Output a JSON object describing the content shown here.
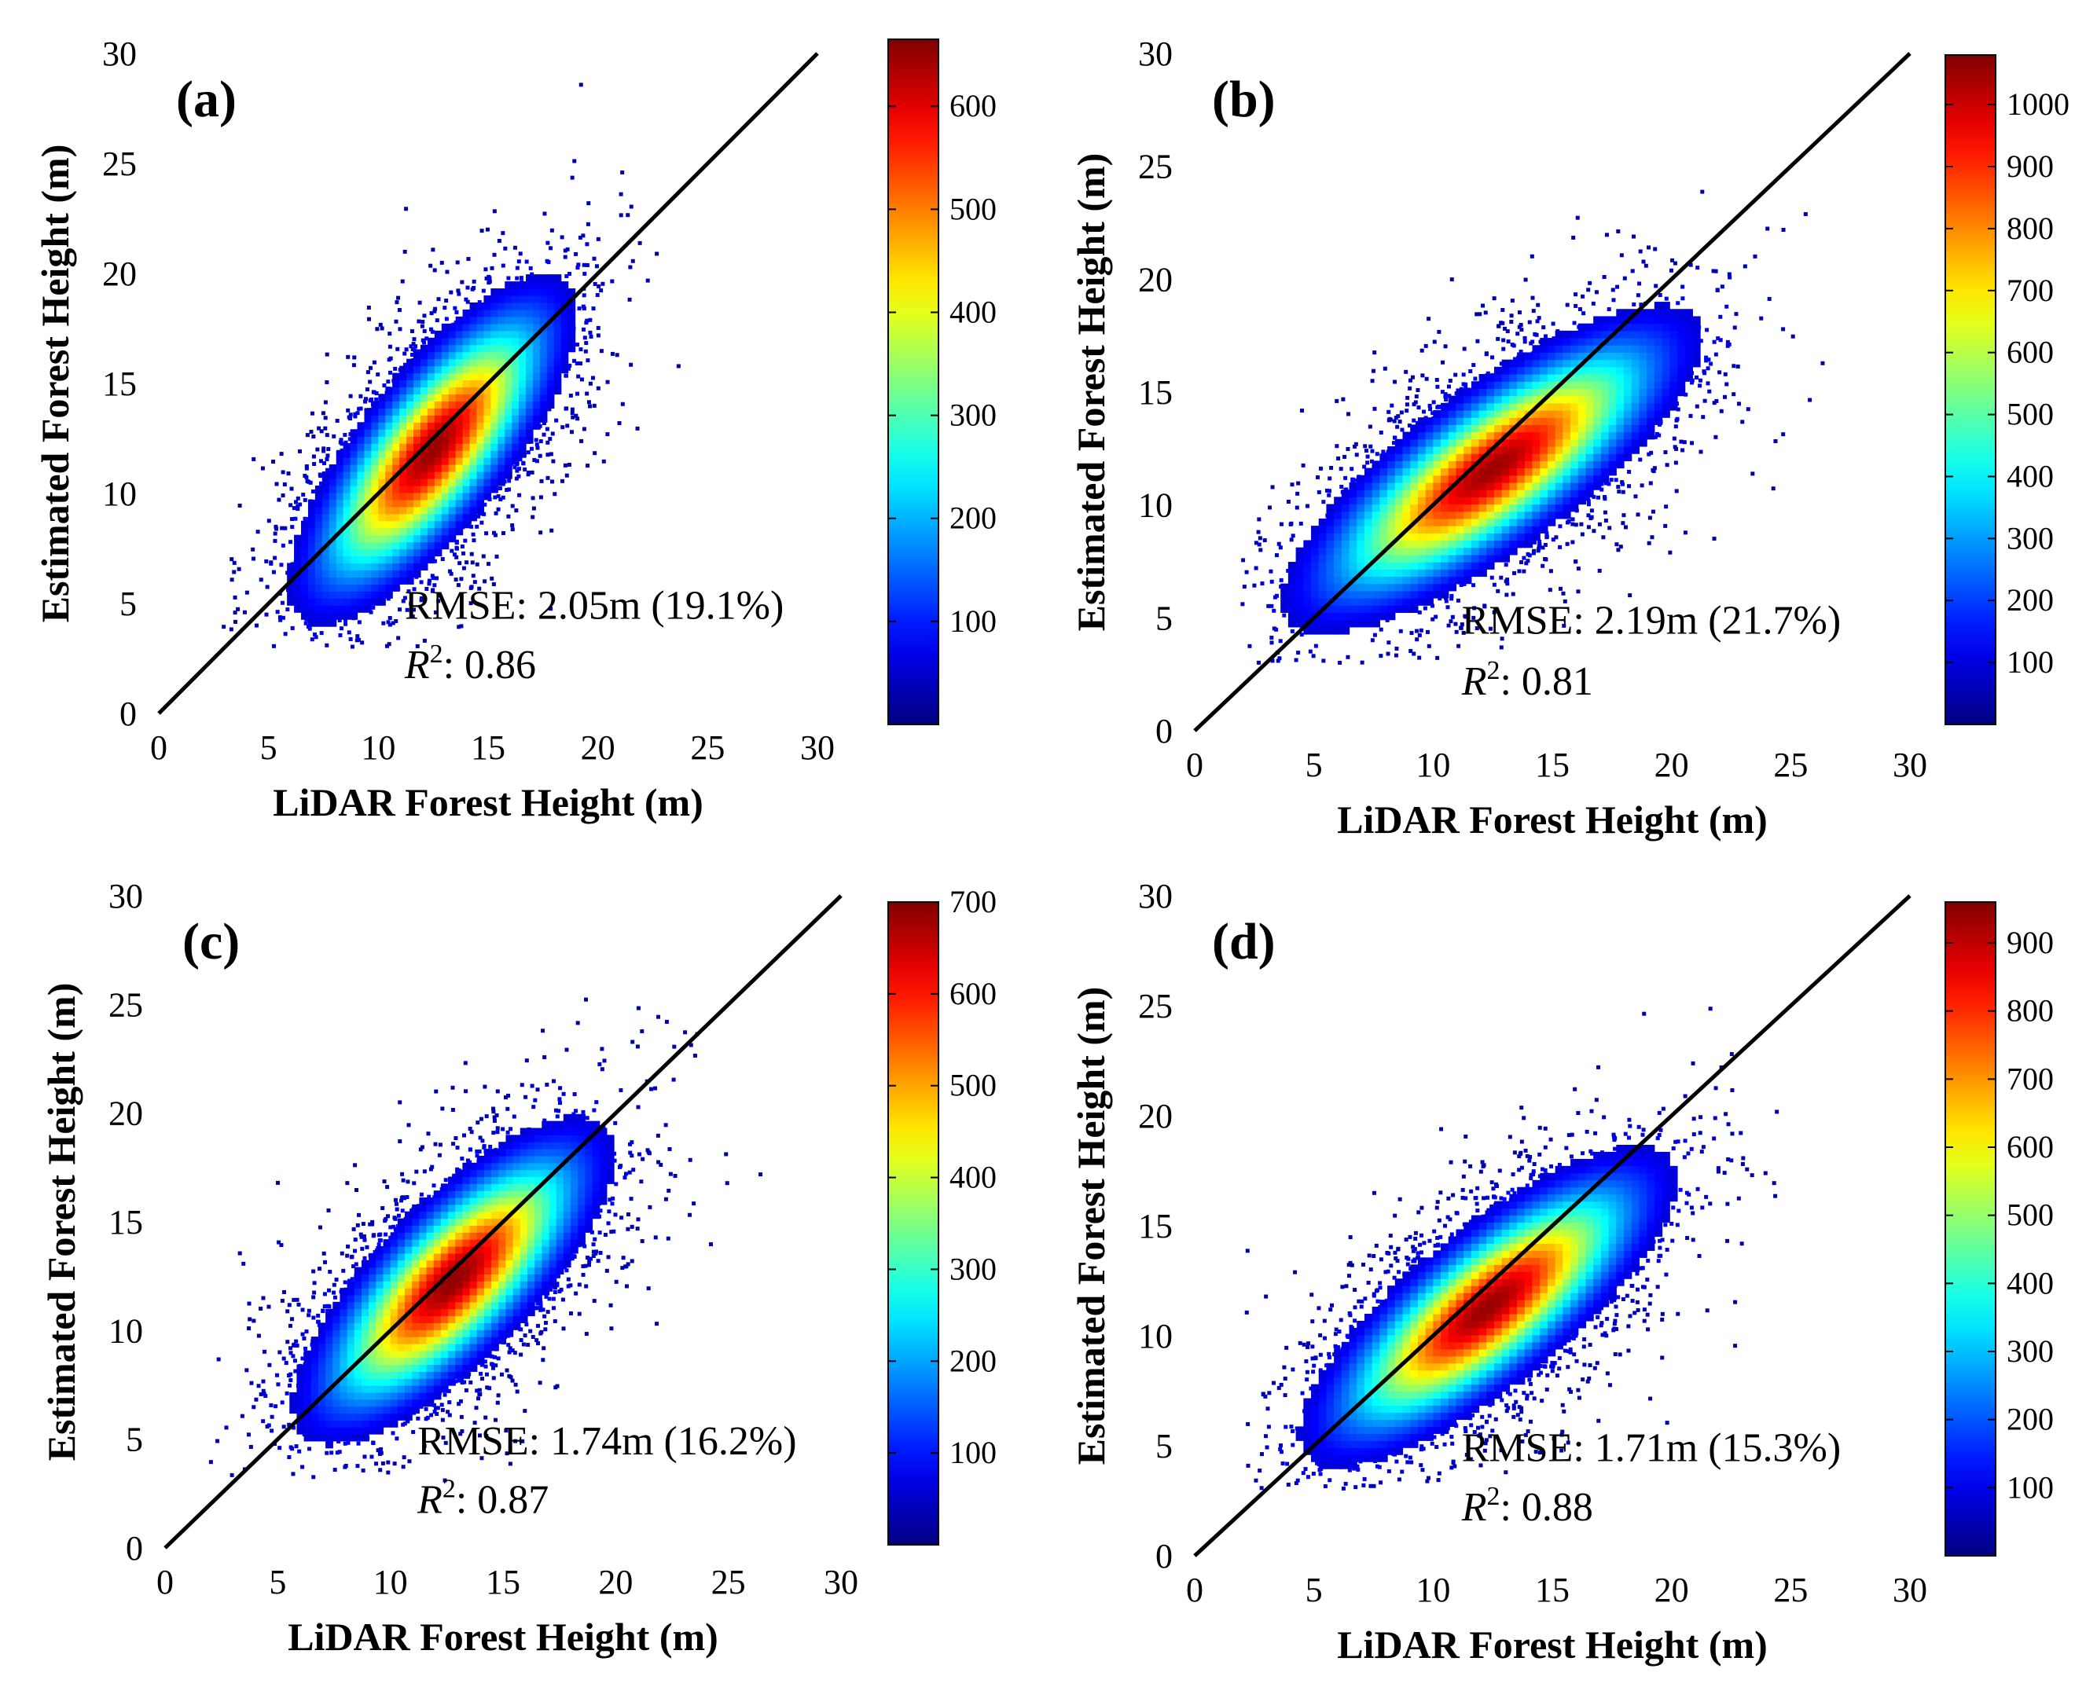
{
  "chart_data": [
    {
      "type": "scatter",
      "panel_label": "(a)",
      "xlabel": "LiDAR Forest Height (m)",
      "ylabel": "Estimated Forest Height (m)",
      "xlim": [
        0,
        30
      ],
      "ylim": [
        0,
        30
      ],
      "xticks": [
        "0",
        "5",
        "10",
        "15",
        "20",
        "25",
        "30"
      ],
      "yticks": [
        "0",
        "5",
        "10",
        "15",
        "20",
        "25",
        "30"
      ],
      "reference_line": "1:1",
      "density": {
        "center": [
          12.5,
          12.0
        ],
        "angle_deg": 52,
        "major_sd": 4.4,
        "minor_sd": 1.55,
        "peak": 650
      },
      "colorbar": {
        "max": 665,
        "ticks": [
          "100",
          "200",
          "300",
          "400",
          "500",
          "600"
        ],
        "values": [
          100,
          200,
          300,
          400,
          500,
          600
        ]
      },
      "rmse_text": "RMSE: 2.05m (19.1%)",
      "r2_label": "R",
      "r2_exp": "2",
      "r2_value": ": 0.86"
    },
    {
      "type": "scatter",
      "panel_label": "(b)",
      "xlabel": "LiDAR Forest Height (m)",
      "ylabel": "Estimated Forest Height (m)",
      "xlim": [
        0,
        30
      ],
      "ylim": [
        0,
        30
      ],
      "xticks": [
        "0",
        "5",
        "10",
        "15",
        "20",
        "25",
        "30"
      ],
      "yticks": [
        "0",
        "5",
        "10",
        "15",
        "20",
        "25",
        "30"
      ],
      "reference_line": "1:1",
      "density": {
        "center": [
          12.5,
          11.6
        ],
        "angle_deg": 38,
        "major_sd": 4.9,
        "minor_sd": 1.6,
        "peak": 1050
      },
      "colorbar": {
        "max": 1080,
        "ticks": [
          "100",
          "200",
          "300",
          "400",
          "500",
          "600",
          "700",
          "800",
          "900",
          "1000"
        ],
        "values": [
          100,
          200,
          300,
          400,
          500,
          600,
          700,
          800,
          900,
          1000
        ]
      },
      "rmse_text": "RMSE: 2.19m (21.7%)",
      "r2_label": "R",
      "r2_exp": "2",
      "r2_value": ": 0.81"
    },
    {
      "type": "scatter",
      "panel_label": "(c)",
      "xlabel": "LiDAR Forest Height (m)",
      "ylabel": "Estimated Forest Height (m)",
      "xlim": [
        0,
        30
      ],
      "ylim": [
        0,
        30
      ],
      "xticks": [
        "0",
        "5",
        "10",
        "15",
        "20",
        "25",
        "30"
      ],
      "yticks": [
        "0",
        "5",
        "10",
        "15",
        "20",
        "25",
        "30"
      ],
      "reference_line": "1:1",
      "density": {
        "center": [
          12.8,
          12.3
        ],
        "angle_deg": 47,
        "major_sd": 4.4,
        "minor_sd": 1.6,
        "peak": 690
      },
      "colorbar": {
        "max": 700,
        "ticks": [
          "100",
          "200",
          "300",
          "400",
          "500",
          "600",
          "700"
        ],
        "values": [
          100,
          200,
          300,
          400,
          500,
          600,
          700
        ]
      },
      "rmse_text": "RMSE: 1.74m (16.2%)",
      "r2_label": "R",
      "r2_exp": "2",
      "r2_value": ": 0.87"
    },
    {
      "type": "scatter",
      "panel_label": "(d)",
      "xlabel": "LiDAR Forest Height (m)",
      "ylabel": "Estimated Forest Height (m)",
      "xlim": [
        0,
        30
      ],
      "ylim": [
        0,
        30
      ],
      "xticks": [
        "0",
        "5",
        "10",
        "15",
        "20",
        "25",
        "30"
      ],
      "yticks": [
        "0",
        "5",
        "10",
        "15",
        "20",
        "25",
        "30"
      ],
      "reference_line": "1:1",
      "density": {
        "center": [
          12.3,
          11.3
        ],
        "angle_deg": 42,
        "major_sd": 4.6,
        "minor_sd": 1.55,
        "peak": 940
      },
      "colorbar": {
        "max": 960,
        "ticks": [
          "100",
          "200",
          "300",
          "400",
          "500",
          "600",
          "700",
          "800",
          "900"
        ],
        "values": [
          100,
          200,
          300,
          400,
          500,
          600,
          700,
          800,
          900
        ]
      },
      "rmse_text": "RMSE: 1.71m (15.3%)",
      "r2_label": "R",
      "r2_exp": "2",
      "r2_value": ": 0.88"
    }
  ]
}
